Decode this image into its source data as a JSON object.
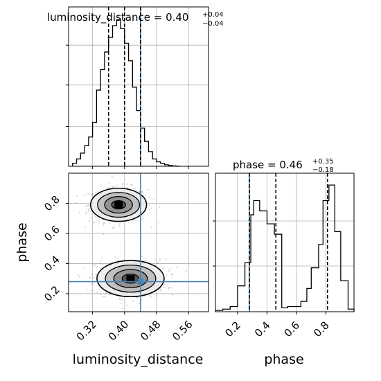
{
  "chart_data": [
    {
      "type": "histogram",
      "panel": "luminosity_distance_marginal",
      "title_param": "luminosity_distance",
      "title_median": "0.40",
      "title_plus": "+0.04",
      "title_minus": "−0.04",
      "x_range": [
        0.26,
        0.61
      ],
      "bin_edges": [
        0.27,
        0.28,
        0.29,
        0.3,
        0.31,
        0.32,
        0.33,
        0.34,
        0.35,
        0.36,
        0.37,
        0.38,
        0.39,
        0.4,
        0.41,
        0.42,
        0.43,
        0.44,
        0.45,
        0.46,
        0.47,
        0.48,
        0.49,
        0.5,
        0.51,
        0.52,
        0.53,
        0.54
      ],
      "counts": [
        0.02,
        0.05,
        0.09,
        0.14,
        0.2,
        0.3,
        0.52,
        0.66,
        0.78,
        0.88,
        0.96,
        1.0,
        0.94,
        0.84,
        0.72,
        0.54,
        0.38,
        0.26,
        0.17,
        0.1,
        0.05,
        0.03,
        0.02,
        0.01,
        0.005,
        0.002,
        0.0
      ],
      "quantiles": [
        0.36,
        0.4,
        0.44
      ],
      "truth": 0.44
    },
    {
      "type": "histogram",
      "panel": "phase_marginal",
      "title_param": "phase",
      "title_median": "0.46",
      "title_plus": "+0.35",
      "title_minus": "−0.18",
      "x_range": [
        0.05,
        0.99
      ],
      "xticks": [
        "0.2",
        "0.4",
        "0.6",
        "0.8"
      ],
      "xlabel": "phase",
      "bin_edges": [
        0.05,
        0.1,
        0.15,
        0.2,
        0.25,
        0.29,
        0.31,
        0.35,
        0.4,
        0.45,
        0.5,
        0.54,
        0.58,
        0.63,
        0.67,
        0.7,
        0.75,
        0.78,
        0.82,
        0.86,
        0.9,
        0.95,
        0.99
      ],
      "counts": [
        0.01,
        0.02,
        0.04,
        0.2,
        0.38,
        0.75,
        0.86,
        0.78,
        0.68,
        0.6,
        0.03,
        0.04,
        0.04,
        0.08,
        0.18,
        0.34,
        0.52,
        0.86,
        0.98,
        0.62,
        0.24,
        0.02
      ],
      "quantiles": [
        0.28,
        0.46,
        0.81
      ],
      "truth": 0.28
    },
    {
      "type": "scatter_density",
      "panel": "luminosity_distance_vs_phase",
      "x_param": "luminosity_distance",
      "y_param": "phase",
      "x_range": [
        0.26,
        0.61
      ],
      "y_range": [
        0.08,
        1.0
      ],
      "xticks": [
        "0.32",
        "0.40",
        "0.48",
        "0.56"
      ],
      "yticks": [
        "0.2",
        "0.4",
        "0.6",
        "0.8"
      ],
      "xlabel": "luminosity_distance",
      "ylabel": "phase",
      "modes": [
        {
          "x": 0.385,
          "y": 0.79,
          "sx": 0.035,
          "sy": 0.055
        },
        {
          "x": 0.415,
          "y": 0.3,
          "sx": 0.042,
          "sy": 0.06
        }
      ],
      "truth": [
        0.44,
        0.28
      ]
    }
  ]
}
